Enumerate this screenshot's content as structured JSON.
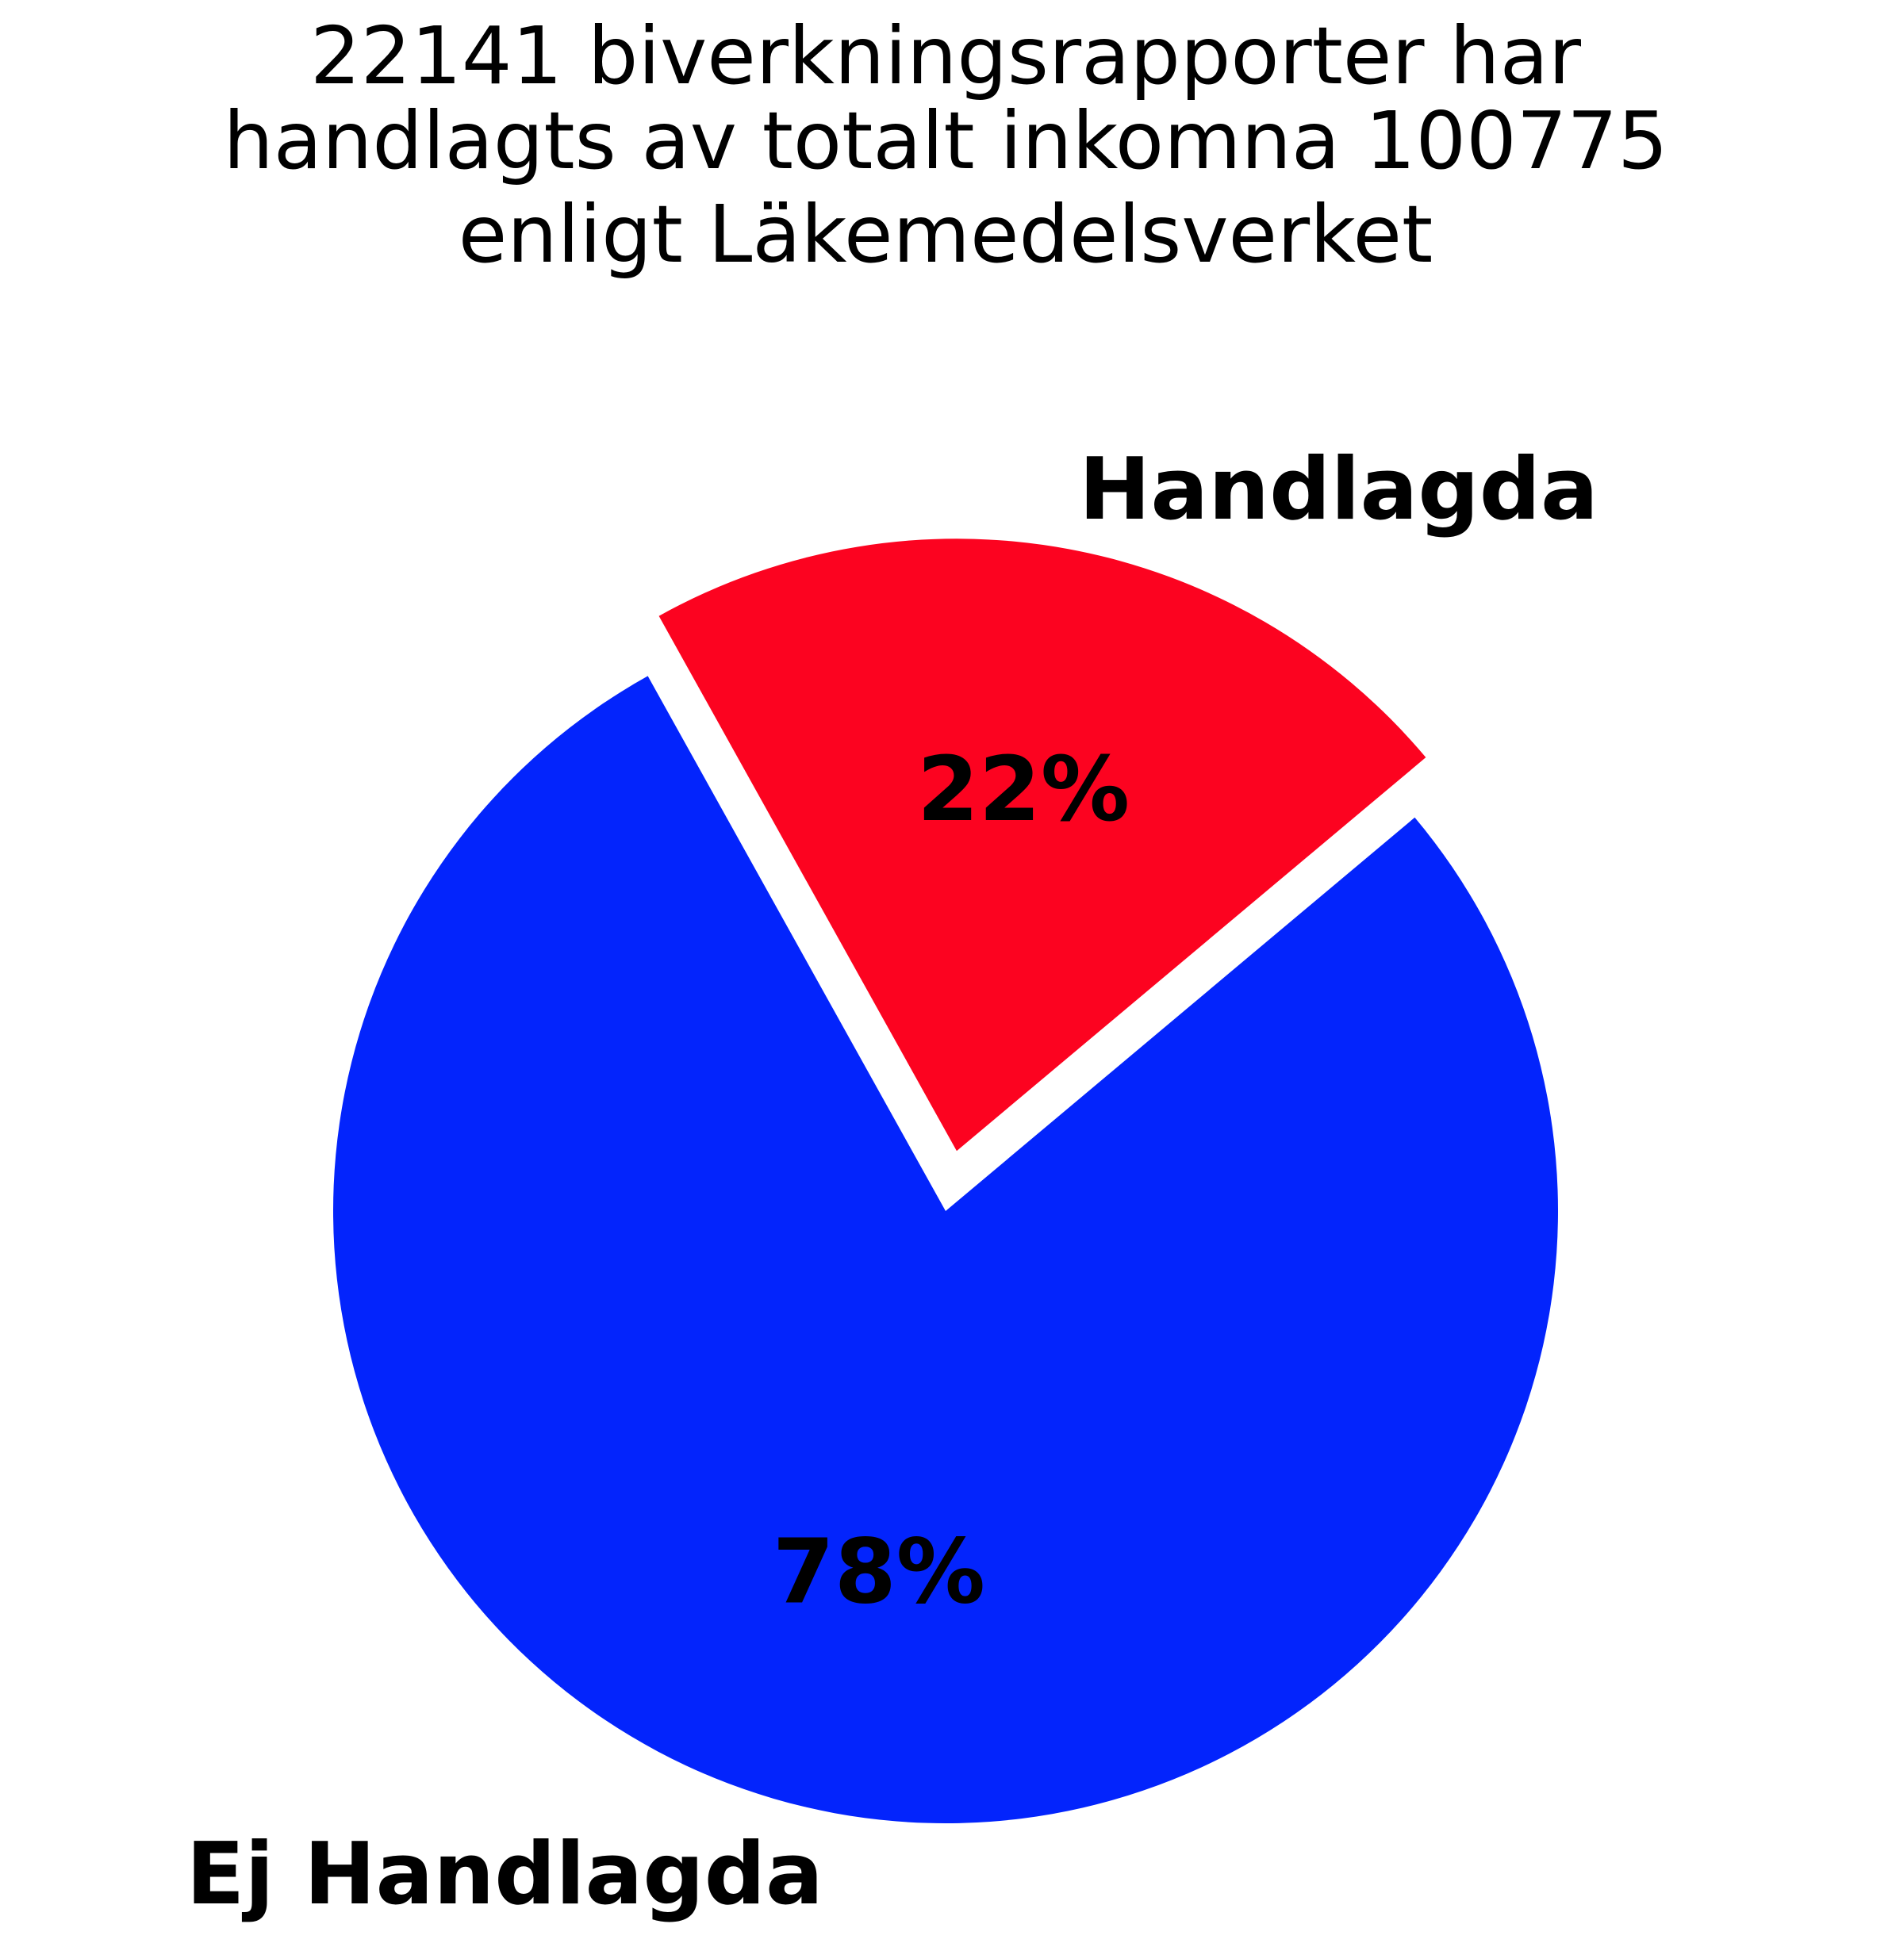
{
  "chart_data": {
    "type": "pie",
    "title_lines": [
      "22141 biverkningsrapporter har",
      "handlagts av totalt inkomna 100775",
      "enligt Läkemedelsverket"
    ],
    "slices": [
      {
        "label": "Handlagda",
        "value": 22141,
        "percent_label": "22%",
        "color": "#fc0320",
        "exploded": true
      },
      {
        "label": "Ej Handlagda",
        "value": 78634,
        "percent_label": "78%",
        "color": "#0324fc",
        "exploded": false
      }
    ],
    "total": 100775,
    "legend": "none"
  }
}
